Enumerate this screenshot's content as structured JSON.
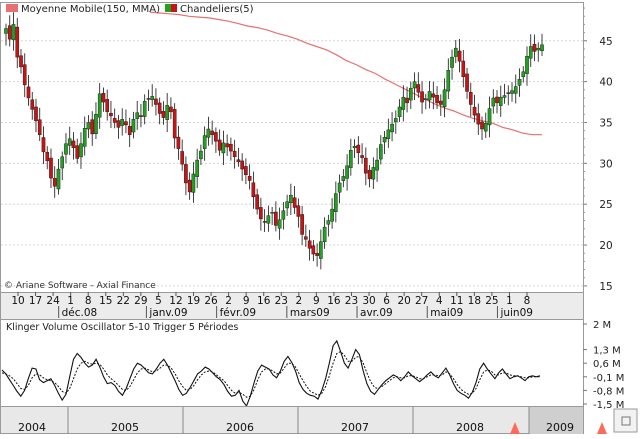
{
  "legend": {
    "ma_label": "Moyenne Mobile(150, MMA)",
    "ma_color": "#e87070",
    "candle_label": "Chandeliers(5)",
    "candle_up_color": "#22a022",
    "candle_down_color": "#c81414"
  },
  "credit": "© Ariane Software - Axial Finance",
  "osc_label": "Klinger Volume Oscillator 5-10   Trigger 5 Périodes",
  "chart_data": [
    {
      "type": "candlestick",
      "y_ticks": [
        "15",
        "20",
        "25",
        "30",
        "35",
        "40",
        "45"
      ],
      "ylim": [
        14.5,
        49.5
      ],
      "x_day_ticks": [
        "10",
        "17",
        "24",
        "1",
        "8",
        "15",
        "22",
        "29",
        "5",
        "12",
        "19",
        "26",
        "2",
        "9",
        "16",
        "23",
        "2",
        "9",
        "16",
        "23",
        "30",
        "6",
        "20",
        "27",
        "4",
        "11",
        "18",
        "25",
        "1",
        "8"
      ],
      "x_month_labels": [
        {
          "label": "déc.08",
          "at": 3
        },
        {
          "label": "janv.09",
          "at": 8
        },
        {
          "label": "févr.09",
          "at": 12
        },
        {
          "label": "mars09",
          "at": 16
        },
        {
          "label": "avr.09",
          "at": 20
        },
        {
          "label": "mai09",
          "at": 24
        },
        {
          "label": "juin09",
          "at": 28
        }
      ],
      "close": [
        46.5,
        45.2,
        47.0,
        43.0,
        41.8,
        39.6,
        38.0,
        36.6,
        35.2,
        33.5,
        31.4,
        30.3,
        28.2,
        27.2,
        29.3,
        30.8,
        32.4,
        33.0,
        31.9,
        30.6,
        32.4,
        34.3,
        35.0,
        33.6,
        36.0,
        38.5,
        37.5,
        36.3,
        35.8,
        35.0,
        34.4,
        35.4,
        34.7,
        33.5,
        35.4,
        36.2,
        35.7,
        37.6,
        37.9,
        38.2,
        37.2,
        36.1,
        35.6,
        37.1,
        36.3,
        33.1,
        31.8,
        29.9,
        27.6,
        26.5,
        28.7,
        30.4,
        31.5,
        33.4,
        34.2,
        33.5,
        32.7,
        31.6,
        32.5,
        32.0,
        31.5,
        30.8,
        30.2,
        29.3,
        28.6,
        27.9,
        25.9,
        24.4,
        23.2,
        22.8,
        23.6,
        24.0,
        22.4,
        23.1,
        24.2,
        25.3,
        26.1,
        24.6,
        23.5,
        21.3,
        20.7,
        19.6,
        18.9,
        18.7,
        20.4,
        22.2,
        23.0,
        24.4,
        26.3,
        27.6,
        28.4,
        29.7,
        31.6,
        32.1,
        31.3,
        30.7,
        28.8,
        28.1,
        29.5,
        30.4,
        32.3,
        33.2,
        34.1,
        34.8,
        35.5,
        36.9,
        38.1,
        37.4,
        39.2,
        40.0,
        38.7,
        37.5,
        37.9,
        38.8,
        38.1,
        37.4,
        37.2,
        39.0,
        41.4,
        43.0,
        44.1,
        42.5,
        40.6,
        38.8,
        37.2,
        35.9,
        34.8,
        34.2,
        34.9,
        36.7,
        38.0,
        37.4,
        38.1,
        38.3,
        38.6,
        38.9,
        39.4,
        40.3,
        41.2,
        43.1,
        44.3,
        43.7,
        44.1,
        44.5
      ],
      "ma150": [
        48.5,
        48.4,
        48.3,
        48.2,
        48.0,
        47.9,
        47.8,
        47.6,
        47.4,
        47.1,
        46.8,
        46.6,
        46.3,
        45.9,
        45.6,
        45.2,
        44.7,
        44.3,
        43.9,
        43.3,
        42.6,
        42.1,
        41.5,
        41.0,
        40.3,
        39.7,
        39.1,
        38.5,
        37.9,
        37.3,
        36.8,
        36.4,
        35.9,
        35.5,
        35.2,
        34.9,
        34.4,
        34.1,
        33.7,
        33.5,
        33.5
      ],
      "osc_y_ticks": [
        "2 M",
        "1,3 M",
        "0,6 M",
        "-0,1 M",
        "-0,8 M",
        "-1,5 M"
      ],
      "osc_ylim": [
        -1.5,
        2.0
      ],
      "osc_series": [
        0.25,
        0.05,
        -0.25,
        -0.55,
        -0.85,
        -1.1,
        -0.8,
        -0.2,
        0.35,
        0.3,
        -0.25,
        -0.4,
        -0.3,
        -0.2,
        -0.55,
        -0.95,
        -1.3,
        -1.0,
        -0.1,
        0.8,
        1.1,
        0.9,
        0.6,
        0.4,
        0.5,
        0.8,
        0.4,
        -0.1,
        -0.45,
        -0.4,
        -0.55,
        -0.85,
        -1.05,
        -0.7,
        -0.2,
        0.3,
        0.6,
        0.5,
        0.3,
        0.1,
        0.05,
        0.3,
        0.6,
        0.8,
        0.5,
        0.1,
        -0.3,
        -0.75,
        -1.05,
        -0.95,
        -0.65,
        -0.3,
        0.05,
        0.2,
        0.4,
        0.3,
        0.1,
        -0.1,
        -0.25,
        -0.5,
        -0.85,
        -1.1,
        -1.05,
        -0.8,
        -1.35,
        -1.6,
        -1.1,
        -0.4,
        0.2,
        0.5,
        0.4,
        0.3,
        0.0,
        -0.15,
        0.2,
        0.7,
        0.95,
        0.65,
        0.2,
        -0.4,
        -0.75,
        -0.95,
        -1.05,
        -1.1,
        -1.25,
        -0.8,
        -0.2,
        0.6,
        1.5,
        1.75,
        1.2,
        0.6,
        0.35,
        0.8,
        1.3,
        1.05,
        0.2,
        -0.45,
        -0.85,
        -1.0,
        -0.75,
        -0.5,
        -0.3,
        -0.15,
        0.0,
        -0.1,
        -0.3,
        -0.1,
        0.15,
        -0.05,
        -0.2,
        -0.35,
        -0.2,
        0.0,
        0.15,
        -0.05,
        -0.15,
        0.1,
        0.35,
        0.0,
        -0.45,
        -0.8,
        -0.95,
        -1.05,
        -1.2,
        -0.9,
        -0.4,
        0.3,
        0.6,
        0.3,
        0.05,
        -0.2,
        0.1,
        0.3,
        0.05,
        -0.2,
        -0.1,
        -0.05,
        -0.15,
        -0.3,
        -0.1,
        -0.05,
        -0.1,
        -0.05
      ],
      "trigger_series": [
        0.1,
        0.05,
        -0.05,
        -0.2,
        -0.45,
        -0.7,
        -0.75,
        -0.55,
        -0.15,
        0.05,
        0.0,
        -0.15,
        -0.25,
        -0.3,
        -0.4,
        -0.6,
        -0.85,
        -0.95,
        -0.7,
        -0.2,
        0.3,
        0.6,
        0.7,
        0.6,
        0.55,
        0.6,
        0.55,
        0.3,
        0.0,
        -0.2,
        -0.35,
        -0.55,
        -0.75,
        -0.8,
        -0.6,
        -0.25,
        0.1,
        0.3,
        0.35,
        0.25,
        0.15,
        0.2,
        0.35,
        0.5,
        0.5,
        0.35,
        0.05,
        -0.3,
        -0.6,
        -0.8,
        -0.75,
        -0.55,
        -0.25,
        0.0,
        0.15,
        0.2,
        0.15,
        0.0,
        -0.15,
        -0.3,
        -0.55,
        -0.8,
        -0.95,
        -0.9,
        -1.0,
        -1.15,
        -1.1,
        -0.75,
        -0.25,
        0.15,
        0.3,
        0.3,
        0.2,
        0.05,
        0.1,
        0.35,
        0.6,
        0.6,
        0.4,
        0.05,
        -0.3,
        -0.6,
        -0.85,
        -0.95,
        -1.05,
        -0.95,
        -0.6,
        -0.05,
        0.6,
        1.1,
        1.2,
        1.0,
        0.7,
        0.7,
        0.9,
        0.95,
        0.6,
        0.1,
        -0.35,
        -0.65,
        -0.7,
        -0.6,
        -0.45,
        -0.3,
        -0.15,
        -0.1,
        -0.15,
        -0.15,
        -0.05,
        -0.05,
        -0.1,
        -0.2,
        -0.2,
        -0.1,
        0.0,
        0.0,
        -0.05,
        0.0,
        0.15,
        0.05,
        -0.2,
        -0.5,
        -0.75,
        -0.9,
        -1.0,
        -0.95,
        -0.7,
        -0.25,
        0.15,
        0.25,
        0.2,
        0.0,
        0.0,
        0.1,
        0.1,
        0.0,
        -0.05,
        -0.05,
        -0.1,
        -0.15,
        -0.15,
        -0.1,
        -0.1,
        -0.1
      ],
      "years": [
        "2004",
        "2005",
        "2006",
        "2007",
        "2008",
        "2009"
      ]
    }
  ]
}
